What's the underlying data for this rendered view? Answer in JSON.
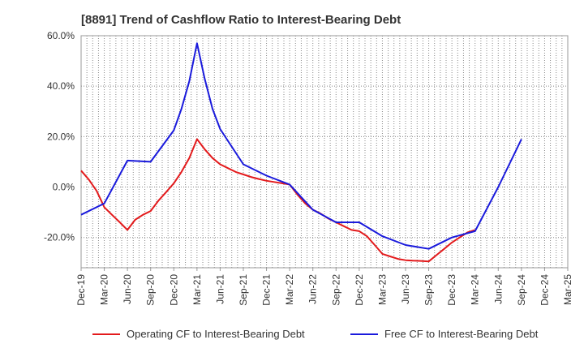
{
  "chart_data": {
    "type": "line",
    "title": "[8891]  Trend of Cashflow Ratio to Interest-Bearing Debt",
    "xlabel": "",
    "ylabel": "",
    "categories": [
      "Dec-19",
      "Mar-20",
      "Jun-20",
      "Sep-20",
      "Dec-20",
      "Mar-21",
      "Jun-21",
      "Sep-21",
      "Dec-21",
      "Mar-22",
      "Jun-22",
      "Sep-22",
      "Dec-22",
      "Mar-23",
      "Jun-23",
      "Sep-23",
      "Dec-23",
      "Mar-24",
      "Jun-24",
      "Sep-24",
      "Dec-24",
      "Mar-25"
    ],
    "ylim": [
      -32,
      60
    ],
    "yticks": [
      -20,
      0,
      20,
      40,
      60
    ],
    "ytick_labels": [
      "-20.0%",
      "0.0%",
      "20.0%",
      "40.0%",
      "60.0%"
    ],
    "grid": true,
    "legend_position": "bottom",
    "series": [
      {
        "name": "Operating CF to Interest-Bearing Debt",
        "color": "#e31a1c",
        "x": [
          0,
          0.33,
          0.67,
          1,
          1.33,
          1.67,
          2,
          2.33,
          2.67,
          3,
          3.33,
          3.67,
          4,
          4.33,
          4.67,
          5,
          5.33,
          5.67,
          6,
          6.33,
          6.67,
          7,
          7.33,
          7.67,
          8,
          8.33,
          8.67,
          9,
          9.33,
          9.67,
          10,
          10.33,
          10.67,
          11,
          11.33,
          11.67,
          12,
          12.33,
          12.67,
          13,
          13.33,
          13.67,
          14,
          14.33,
          14.67,
          15,
          15.33,
          15.67,
          16,
          16.33,
          16.67,
          17
        ],
        "values": [
          6.5,
          3,
          -1.5,
          -8,
          -11,
          -14,
          -17,
          -13,
          -11,
          -9.5,
          -5.5,
          -2,
          1.5,
          6,
          11.5,
          19,
          15,
          11.5,
          9,
          7.5,
          6,
          5,
          4,
          3.2,
          2.5,
          2,
          1.5,
          1,
          -3,
          -6.5,
          -9,
          -10.5,
          -12.5,
          -14,
          -15.5,
          -17,
          -17.5,
          -19.5,
          -23,
          -26.5,
          -27.5,
          -28.5,
          -29,
          -29.2,
          -29.3,
          -29.5,
          -27,
          -24.5,
          -22,
          -20,
          -18,
          -17
        ]
      },
      {
        "name": "Free CF to Interest-Bearing Debt",
        "color": "#1a1adc",
        "x": [
          0,
          1,
          2,
          3,
          4,
          4.33,
          4.67,
          5,
          5.33,
          5.67,
          6,
          7,
          8,
          9,
          10,
          11,
          12,
          13,
          14,
          15,
          16,
          17,
          18,
          19
        ],
        "values": [
          -11,
          -6.5,
          10.5,
          10,
          22.5,
          31,
          42,
          57,
          43,
          31,
          23,
          9,
          4.5,
          1,
          -9,
          -14,
          -14,
          -19.5,
          -23,
          -24.5,
          -20,
          -17.5,
          0,
          19
        ]
      }
    ]
  }
}
